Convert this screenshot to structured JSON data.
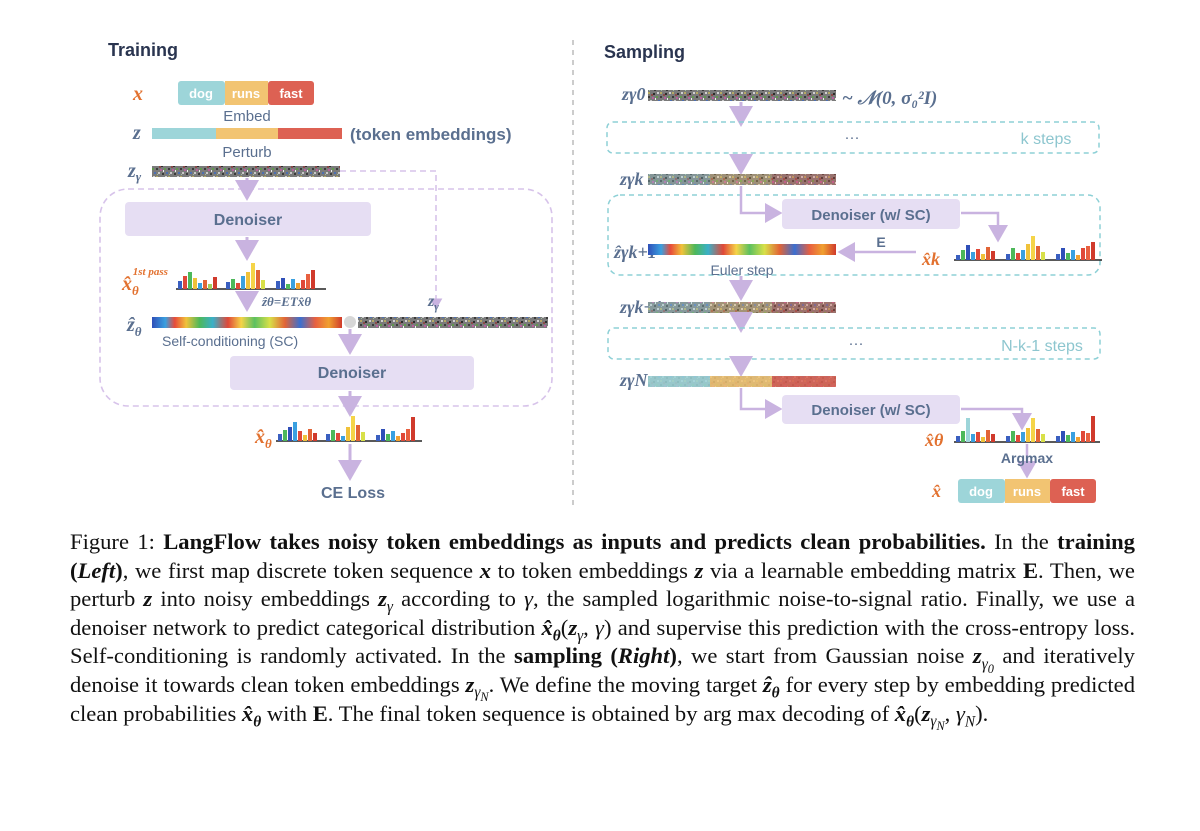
{
  "figure": {
    "training": {
      "title": "Training",
      "x_var": "x",
      "z_var": "z",
      "zgamma_var": "z",
      "zgamma_sub": "γ",
      "tokens": [
        "dog",
        "runs",
        "fast"
      ],
      "embed_label": "Embed",
      "token_embeddings_label": "(token embeddings)",
      "perturb_label": "Perturb",
      "denoiser_label": "Denoiser",
      "first_pass_sup": "1st pass",
      "xhat_theta": "x̂",
      "theta_sub": "θ",
      "zhat_eq": "ẑθ=ETx̂θ",
      "zhat_label": "ẑ",
      "sc_label": "Self-conditioning (SC)",
      "ce_loss_label": "CE Loss"
    },
    "sampling": {
      "title": "Sampling",
      "noise_dist": "~ 𝒩(0, σ₀²I)",
      "ellipsis": "···",
      "k_steps_label": "k steps",
      "n_k_1_steps_label": "N-k-1 steps",
      "denoiser_sc_label": "Denoiser (w/ SC)",
      "e_label": "E",
      "euler_label": "Euler step",
      "argmax_label": "Argmax",
      "z_labels": [
        "zγ0",
        "zγk",
        "ẑγk+1",
        "zγk+1",
        "zγN"
      ],
      "xhat_k": "x̂k",
      "xhat_theta": "x̂θ",
      "xhat": "x̂",
      "tokens": [
        "dog",
        "runs",
        "fast"
      ]
    },
    "colors": {
      "token_dog": "#9dd5d9",
      "token_runs": "#f2c472",
      "token_fast": "#dd6153",
      "denoiser_fill": "#e6def3",
      "arrow": "#c9b3e0",
      "dashed_teal": "#8dd0d6",
      "label_blue": "#5a6f8f",
      "orange_var": "#e2712f"
    }
  },
  "caption": {
    "fig_label": "Figure 1:",
    "bold_lead": "LangFlow takes noisy token embeddings as inputs and predicts clean probabilities.",
    "t1": "In the",
    "training_word": "training",
    "left_word": "Left",
    "t2": ", we first map discrete token sequence",
    "t3": "to token embeddings",
    "t4": "via a learnable embedding matrix",
    "E": "E",
    "t5": ". Then, we perturb",
    "t6": "into noisy embeddings",
    "t7": "according to",
    "t8": ", the sampled logarithmic noise-to-signal ratio. Finally, we use a denoiser network to predict categorical distribution",
    "t9": "and supervise this prediction with the cross-entropy loss. Self-conditioning is randomly activated. In the",
    "sampling_word": "sampling",
    "right_word": "Right",
    "t10": ", we start from Gaussian noise",
    "t11": "and iteratively denoise it towards clean token embeddings",
    "t12": ". We define the moving target",
    "t13": "for every step by embedding predicted clean probabilities",
    "t14": "with",
    "t15": ". The final token sequence is obtained by",
    "argmax": "arg max",
    "t16": "decoding of"
  }
}
